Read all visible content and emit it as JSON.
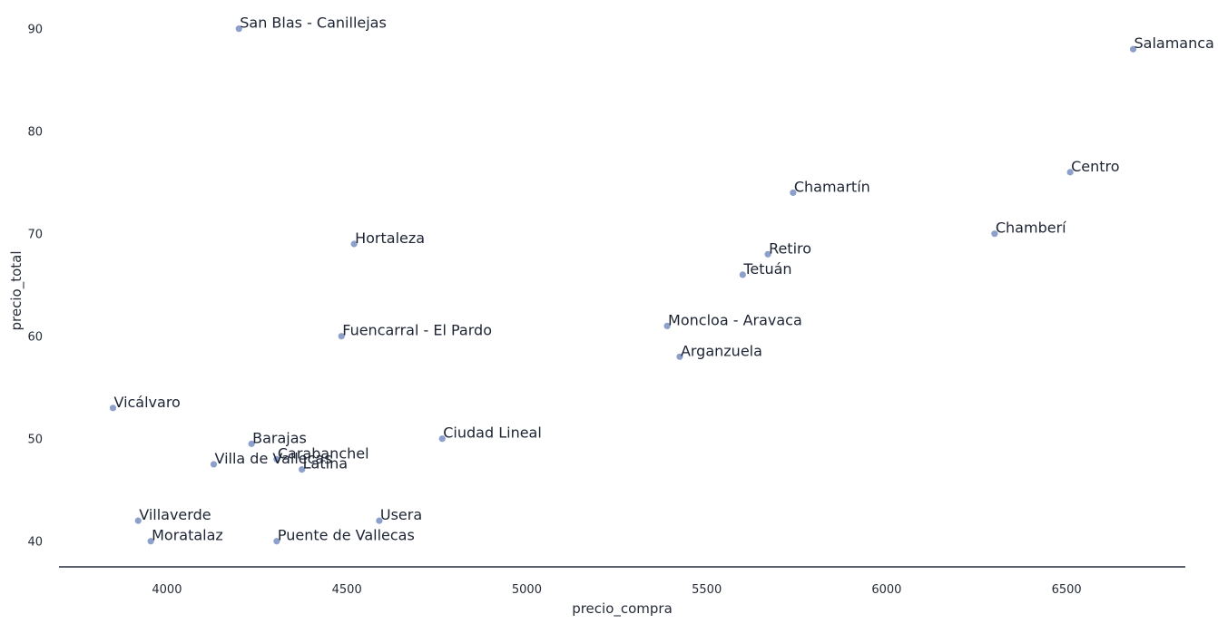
{
  "chart_data": {
    "type": "scatter",
    "title": "",
    "xlabel": "precio_compra",
    "ylabel": "precio_total",
    "xlim": [
      3700,
      6830
    ],
    "ylim": [
      37.5,
      92.8
    ],
    "xticks": [
      4000,
      4500,
      5000,
      5500,
      6000,
      6500
    ],
    "yticks": [
      40,
      50,
      60,
      70,
      80,
      90
    ],
    "grid": false,
    "point_color": "#8da0cb",
    "axis_color": "#262c38",
    "points": [
      {
        "label": "San Blas - Canillejas",
        "x": 4200,
        "y": 90
      },
      {
        "label": "Salamanca",
        "x": 6685,
        "y": 88
      },
      {
        "label": "Centro",
        "x": 6510,
        "y": 76
      },
      {
        "label": "Chamartín",
        "x": 5740,
        "y": 74
      },
      {
        "label": "Chamberí",
        "x": 6300,
        "y": 70
      },
      {
        "label": "Hortaleza",
        "x": 4520,
        "y": 69
      },
      {
        "label": "Retiro",
        "x": 5670,
        "y": 68
      },
      {
        "label": "Tetuán",
        "x": 5600,
        "y": 66
      },
      {
        "label": "Moncloa - Aravaca",
        "x": 5390,
        "y": 61
      },
      {
        "label": "Fuencarral - El Pardo",
        "x": 4485,
        "y": 60
      },
      {
        "label": "Arganzuela",
        "x": 5425,
        "y": 58
      },
      {
        "label": "Vicálvaro",
        "x": 3850,
        "y": 53
      },
      {
        "label": "Ciudad Lineal",
        "x": 4765,
        "y": 50
      },
      {
        "label": "Barajas",
        "x": 4235,
        "y": 49.5
      },
      {
        "label": "Carabanchel",
        "x": 4305,
        "y": 48
      },
      {
        "label": "Villa de Vallecas",
        "x": 4130,
        "y": 47.5
      },
      {
        "label": "Latina",
        "x": 4375,
        "y": 47
      },
      {
        "label": "Villaverde",
        "x": 3920,
        "y": 42
      },
      {
        "label": "Usera",
        "x": 4590,
        "y": 42
      },
      {
        "label": "Moratalaz",
        "x": 3955,
        "y": 40
      },
      {
        "label": "Puente de Vallecas",
        "x": 4305,
        "y": 40
      }
    ]
  }
}
